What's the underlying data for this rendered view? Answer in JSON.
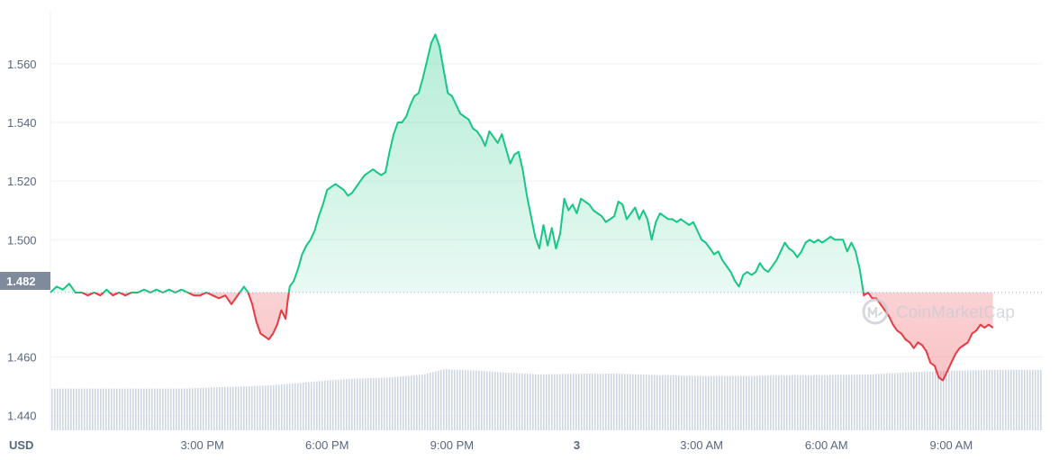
{
  "chart_data": {
    "type": "line",
    "currency_label": "USD",
    "watermark": "CoinMarketCap",
    "current_price_label": "1.482",
    "baseline": 1.482,
    "ylim": [
      1.435,
      1.575
    ],
    "xlim": [
      11.35,
      35.2
    ],
    "y_ticks": [
      {
        "value": 1.44,
        "label": "1.440"
      },
      {
        "value": 1.46,
        "label": "1.460"
      },
      {
        "value": 1.5,
        "label": "1.500"
      },
      {
        "value": 1.52,
        "label": "1.520"
      },
      {
        "value": 1.54,
        "label": "1.540"
      },
      {
        "value": 1.56,
        "label": "1.560"
      }
    ],
    "x_ticks": [
      {
        "value": 15,
        "label": "3:00 PM"
      },
      {
        "value": 18,
        "label": "6:00 PM"
      },
      {
        "value": 21,
        "label": "9:00 PM"
      },
      {
        "value": 24,
        "label": "3"
      },
      {
        "value": 27,
        "label": "3:00 AM"
      },
      {
        "value": 30,
        "label": "6:00 AM"
      },
      {
        "value": 33,
        "label": "9:00 AM"
      }
    ],
    "colors": {
      "up": "#16c784",
      "down": "#ea3943",
      "volume": "#cfd6e4",
      "grid": "#eff2f5",
      "tag": "#808a9d"
    },
    "series": [
      {
        "values": [
          [
            11.35,
            1.482
          ],
          [
            11.5,
            1.484
          ],
          [
            11.65,
            1.483
          ],
          [
            11.8,
            1.485
          ],
          [
            11.95,
            1.482
          ],
          [
            12.1,
            1.482
          ],
          [
            12.25,
            1.481
          ],
          [
            12.4,
            1.482
          ],
          [
            12.55,
            1.481
          ],
          [
            12.7,
            1.483
          ],
          [
            12.85,
            1.481
          ],
          [
            13.0,
            1.482
          ],
          [
            13.15,
            1.481
          ],
          [
            13.3,
            1.482
          ],
          [
            13.45,
            1.482
          ],
          [
            13.6,
            1.483
          ],
          [
            13.75,
            1.482
          ],
          [
            13.9,
            1.483
          ],
          [
            14.05,
            1.482
          ],
          [
            14.2,
            1.483
          ],
          [
            14.35,
            1.482
          ],
          [
            14.5,
            1.483
          ],
          [
            14.65,
            1.482
          ],
          [
            14.8,
            1.481
          ],
          [
            14.95,
            1.481
          ],
          [
            15.1,
            1.482
          ],
          [
            15.25,
            1.481
          ],
          [
            15.4,
            1.48
          ],
          [
            15.55,
            1.481
          ],
          [
            15.7,
            1.478
          ],
          [
            15.85,
            1.481
          ],
          [
            16.0,
            1.484
          ],
          [
            16.1,
            1.482
          ],
          [
            16.2,
            1.478
          ],
          [
            16.3,
            1.472
          ],
          [
            16.4,
            1.468
          ],
          [
            16.5,
            1.467
          ],
          [
            16.6,
            1.466
          ],
          [
            16.7,
            1.468
          ],
          [
            16.8,
            1.471
          ],
          [
            16.9,
            1.476
          ],
          [
            17.0,
            1.473
          ],
          [
            17.05,
            1.479
          ],
          [
            17.1,
            1.484
          ],
          [
            17.2,
            1.486
          ],
          [
            17.3,
            1.49
          ],
          [
            17.4,
            1.495
          ],
          [
            17.5,
            1.498
          ],
          [
            17.6,
            1.5
          ],
          [
            17.7,
            1.503
          ],
          [
            17.8,
            1.508
          ],
          [
            17.9,
            1.512
          ],
          [
            18.0,
            1.517
          ],
          [
            18.1,
            1.518
          ],
          [
            18.2,
            1.519
          ],
          [
            18.3,
            1.518
          ],
          [
            18.4,
            1.517
          ],
          [
            18.5,
            1.515
          ],
          [
            18.6,
            1.516
          ],
          [
            18.7,
            1.518
          ],
          [
            18.8,
            1.52
          ],
          [
            18.9,
            1.522
          ],
          [
            19.0,
            1.523
          ],
          [
            19.1,
            1.524
          ],
          [
            19.2,
            1.523
          ],
          [
            19.3,
            1.522
          ],
          [
            19.4,
            1.523
          ],
          [
            19.5,
            1.53
          ],
          [
            19.6,
            1.536
          ],
          [
            19.7,
            1.54
          ],
          [
            19.8,
            1.54
          ],
          [
            19.9,
            1.542
          ],
          [
            20.0,
            1.546
          ],
          [
            20.1,
            1.549
          ],
          [
            20.2,
            1.55
          ],
          [
            20.3,
            1.555
          ],
          [
            20.4,
            1.561
          ],
          [
            20.5,
            1.567
          ],
          [
            20.6,
            1.57
          ],
          [
            20.7,
            1.566
          ],
          [
            20.8,
            1.558
          ],
          [
            20.9,
            1.55
          ],
          [
            21.0,
            1.549
          ],
          [
            21.1,
            1.546
          ],
          [
            21.2,
            1.543
          ],
          [
            21.3,
            1.542
          ],
          [
            21.4,
            1.541
          ],
          [
            21.5,
            1.538
          ],
          [
            21.6,
            1.537
          ],
          [
            21.7,
            1.535
          ],
          [
            21.8,
            1.532
          ],
          [
            21.9,
            1.537
          ],
          [
            22.0,
            1.535
          ],
          [
            22.1,
            1.533
          ],
          [
            22.2,
            1.536
          ],
          [
            22.3,
            1.531
          ],
          [
            22.4,
            1.526
          ],
          [
            22.5,
            1.529
          ],
          [
            22.6,
            1.53
          ],
          [
            22.7,
            1.524
          ],
          [
            22.8,
            1.515
          ],
          [
            22.9,
            1.508
          ],
          [
            23.0,
            1.501
          ],
          [
            23.1,
            1.497
          ],
          [
            23.2,
            1.505
          ],
          [
            23.3,
            1.498
          ],
          [
            23.4,
            1.504
          ],
          [
            23.5,
            1.497
          ],
          [
            23.6,
            1.502
          ],
          [
            23.7,
            1.514
          ],
          [
            23.8,
            1.51
          ],
          [
            23.9,
            1.512
          ],
          [
            24.0,
            1.509
          ],
          [
            24.1,
            1.514
          ],
          [
            24.2,
            1.513
          ],
          [
            24.3,
            1.512
          ],
          [
            24.4,
            1.51
          ],
          [
            24.5,
            1.509
          ],
          [
            24.6,
            1.508
          ],
          [
            24.7,
            1.506
          ],
          [
            24.8,
            1.507
          ],
          [
            24.9,
            1.508
          ],
          [
            25.0,
            1.513
          ],
          [
            25.1,
            1.512
          ],
          [
            25.2,
            1.507
          ],
          [
            25.3,
            1.509
          ],
          [
            25.4,
            1.511
          ],
          [
            25.5,
            1.507
          ],
          [
            25.6,
            1.51
          ],
          [
            25.7,
            1.507
          ],
          [
            25.8,
            1.5
          ],
          [
            25.9,
            1.506
          ],
          [
            26.0,
            1.509
          ],
          [
            26.1,
            1.508
          ],
          [
            26.2,
            1.507
          ],
          [
            26.3,
            1.507
          ],
          [
            26.4,
            1.506
          ],
          [
            26.5,
            1.507
          ],
          [
            26.6,
            1.506
          ],
          [
            26.7,
            1.505
          ],
          [
            26.8,
            1.506
          ],
          [
            26.9,
            1.503
          ],
          [
            27.0,
            1.5
          ],
          [
            27.1,
            1.499
          ],
          [
            27.2,
            1.497
          ],
          [
            27.3,
            1.495
          ],
          [
            27.4,
            1.496
          ],
          [
            27.5,
            1.493
          ],
          [
            27.6,
            1.491
          ],
          [
            27.7,
            1.489
          ],
          [
            27.8,
            1.486
          ],
          [
            27.9,
            1.484
          ],
          [
            28.0,
            1.488
          ],
          [
            28.1,
            1.489
          ],
          [
            28.2,
            1.488
          ],
          [
            28.3,
            1.489
          ],
          [
            28.4,
            1.492
          ],
          [
            28.5,
            1.49
          ],
          [
            28.6,
            1.489
          ],
          [
            28.7,
            1.491
          ],
          [
            28.8,
            1.493
          ],
          [
            28.9,
            1.496
          ],
          [
            29.0,
            1.499
          ],
          [
            29.1,
            1.497
          ],
          [
            29.2,
            1.496
          ],
          [
            29.3,
            1.494
          ],
          [
            29.4,
            1.496
          ],
          [
            29.5,
            1.499
          ],
          [
            29.6,
            1.5
          ],
          [
            29.7,
            1.499
          ],
          [
            29.8,
            1.5
          ],
          [
            29.9,
            1.499
          ],
          [
            30.0,
            1.5
          ],
          [
            30.1,
            1.501
          ],
          [
            30.2,
            1.5
          ],
          [
            30.3,
            1.5
          ],
          [
            30.4,
            1.5
          ],
          [
            30.5,
            1.496
          ],
          [
            30.6,
            1.499
          ],
          [
            30.7,
            1.496
          ],
          [
            30.8,
            1.49
          ],
          [
            30.9,
            1.481
          ],
          [
            31.0,
            1.482
          ]
        ]
      },
      {
        "values": [
          [
            31.0,
            1.482
          ],
          [
            31.1,
            1.48
          ],
          [
            31.2,
            1.48
          ],
          [
            31.3,
            1.478
          ],
          [
            31.4,
            1.476
          ],
          [
            31.5,
            1.474
          ],
          [
            31.6,
            1.471
          ],
          [
            31.7,
            1.469
          ],
          [
            31.8,
            1.468
          ],
          [
            31.9,
            1.466
          ],
          [
            32.0,
            1.465
          ],
          [
            32.1,
            1.463
          ],
          [
            32.2,
            1.465
          ],
          [
            32.3,
            1.464
          ],
          [
            32.4,
            1.462
          ],
          [
            32.5,
            1.458
          ],
          [
            32.6,
            1.457
          ],
          [
            32.7,
            1.453
          ],
          [
            32.8,
            1.452
          ],
          [
            32.9,
            1.455
          ],
          [
            33.0,
            1.458
          ],
          [
            33.1,
            1.461
          ],
          [
            33.2,
            1.463
          ],
          [
            33.3,
            1.464
          ],
          [
            33.4,
            1.465
          ],
          [
            33.5,
            1.468
          ],
          [
            33.6,
            1.469
          ],
          [
            33.7,
            1.471
          ],
          [
            33.8,
            1.47
          ],
          [
            33.9,
            1.471
          ],
          [
            34.0,
            1.47
          ]
        ]
      }
    ],
    "volume": {
      "values": [
        [
          11.35,
          0.56
        ],
        [
          12.5,
          0.56
        ],
        [
          13.5,
          0.56
        ],
        [
          14.5,
          0.56
        ],
        [
          15.5,
          0.58
        ],
        [
          16.5,
          0.6
        ],
        [
          17.2,
          0.63
        ],
        [
          17.8,
          0.66
        ],
        [
          18.5,
          0.69
        ],
        [
          19.5,
          0.71
        ],
        [
          20.3,
          0.75
        ],
        [
          20.8,
          0.82
        ],
        [
          21.6,
          0.8
        ],
        [
          22.4,
          0.77
        ],
        [
          23.1,
          0.75
        ],
        [
          24.0,
          0.76
        ],
        [
          25.0,
          0.76
        ],
        [
          26.0,
          0.74
        ],
        [
          27.0,
          0.73
        ],
        [
          28.0,
          0.73
        ],
        [
          29.0,
          0.74
        ],
        [
          30.0,
          0.74
        ],
        [
          31.0,
          0.75
        ],
        [
          32.0,
          0.78
        ],
        [
          33.0,
          0.8
        ],
        [
          34.0,
          0.81
        ],
        [
          35.2,
          0.81
        ]
      ]
    }
  }
}
